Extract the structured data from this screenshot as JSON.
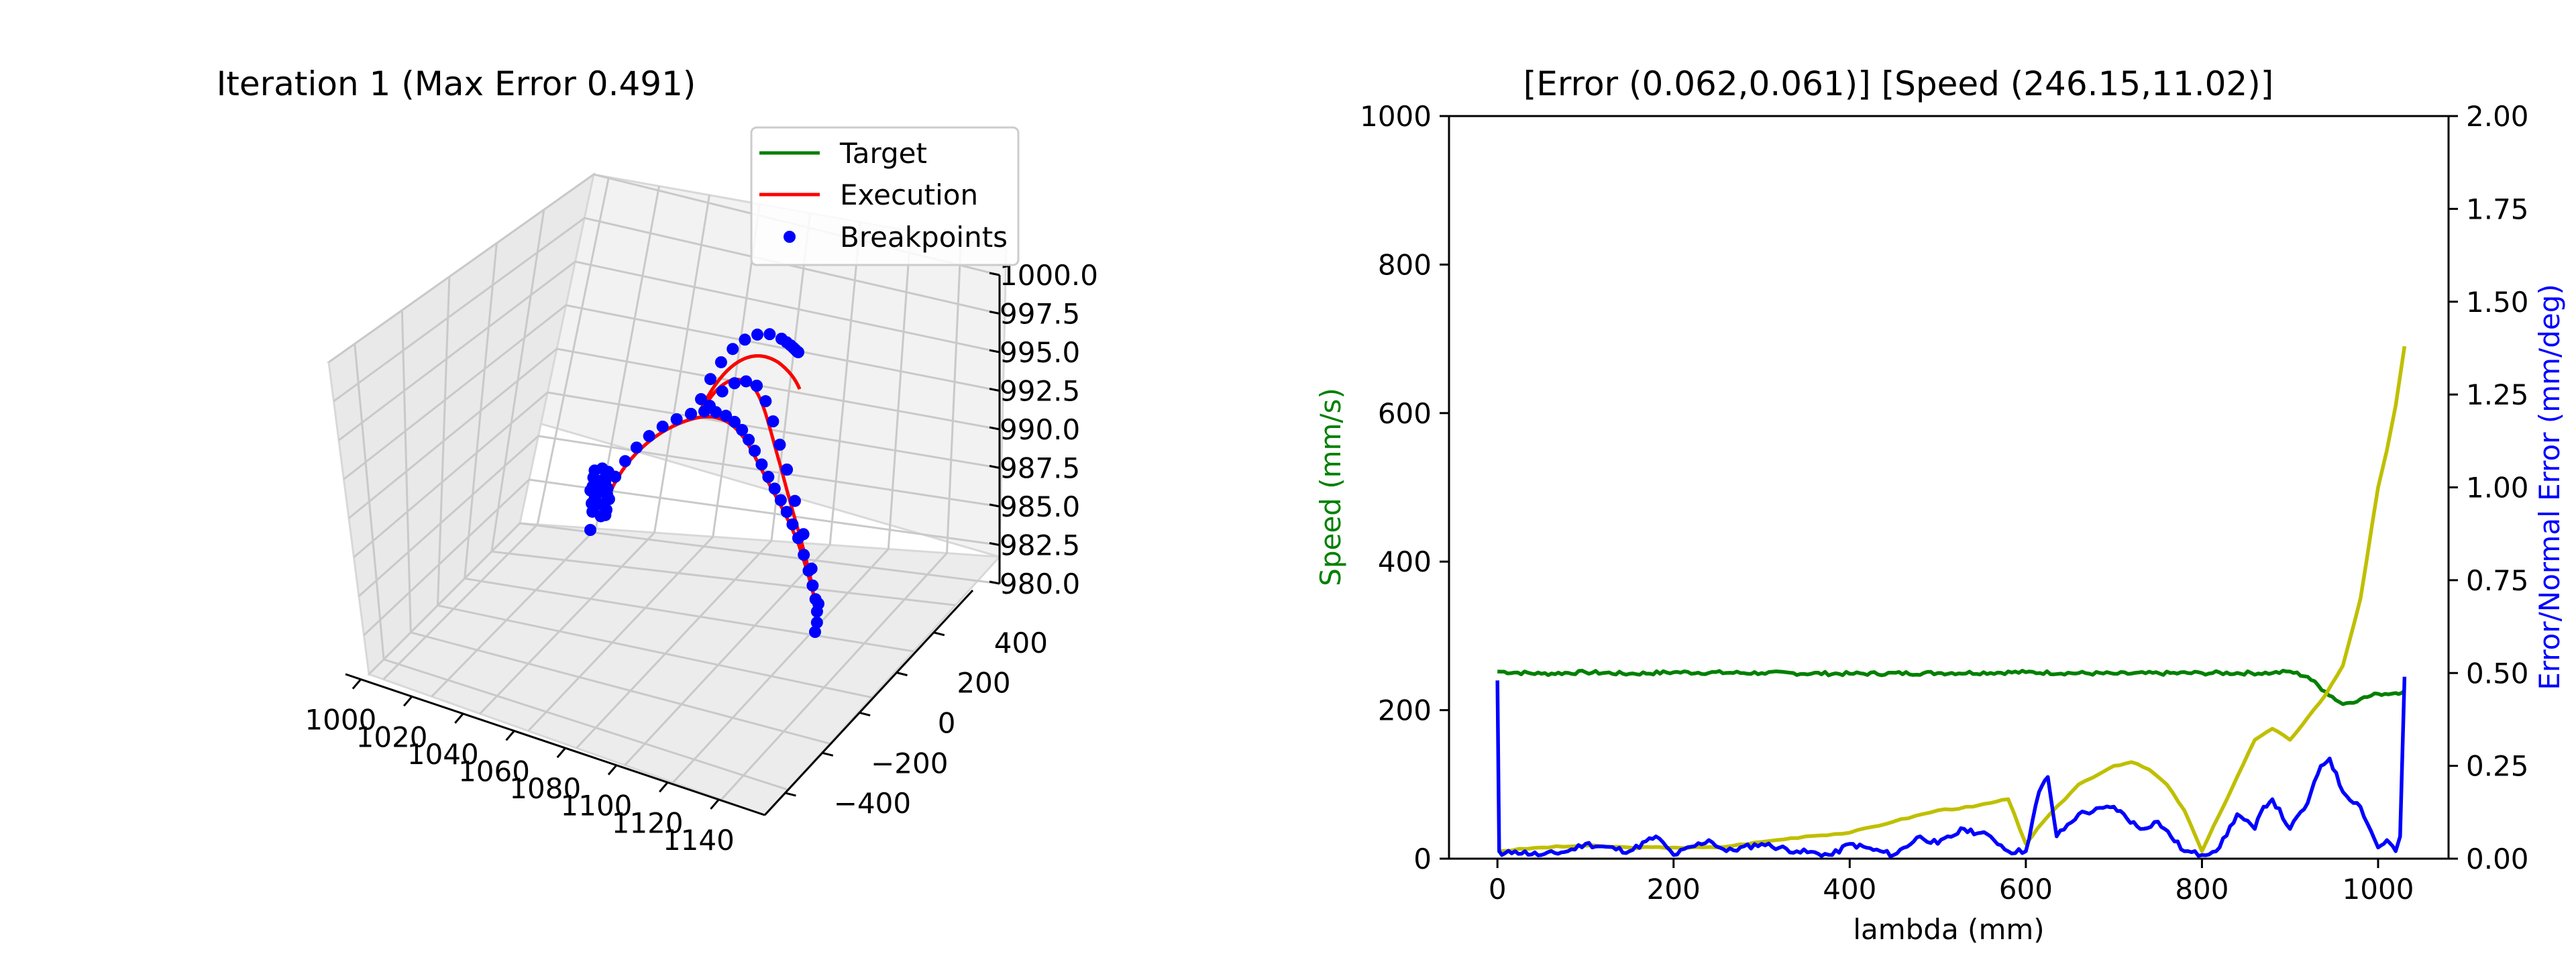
{
  "chart_data": [
    {
      "type": "scatter",
      "subtype": "3d-line-scatter",
      "title": "Iteration 1 (Max Error 0.491)",
      "xlabel": "",
      "ylabel": "",
      "zlabel": "",
      "x_ticks": [
        "1000",
        "1020",
        "1040",
        "1060",
        "1080",
        "1100",
        "1120",
        "1140"
      ],
      "y_ticks": [
        "−400",
        "−200",
        "0",
        "200",
        "400"
      ],
      "z_ticks": [
        "980.0",
        "982.5",
        "985.0",
        "987.5",
        "990.0",
        "992.5",
        "995.0",
        "997.5",
        "1000.0"
      ],
      "xlim": [
        1000,
        1150
      ],
      "ylim": [
        -500,
        500
      ],
      "zlim": [
        980,
        1000
      ],
      "legend_position": "upper right",
      "series": [
        {
          "name": "Target",
          "color": "#008000",
          "style": "line"
        },
        {
          "name": "Execution",
          "color": "#ff0000",
          "style": "line"
        },
        {
          "name": "Breakpoints",
          "color": "#0000ff",
          "style": "markers"
        }
      ]
    },
    {
      "type": "line",
      "title": "[Error (0.062,0.061)] [Speed (246.15,11.02)]",
      "xlabel": "lambda (mm)",
      "ylabel": "Speed (mm/s)",
      "ylabel_right": "Error/Normal Error (mm/deg)",
      "x_ticks": [
        "0",
        "200",
        "400",
        "600",
        "800",
        "1000"
      ],
      "y_ticks": [
        "0",
        "200",
        "400",
        "600",
        "800",
        "1000"
      ],
      "y_right_ticks": [
        "0.00",
        "0.25",
        "0.50",
        "0.75",
        "1.00",
        "1.25",
        "1.50",
        "1.75",
        "2.00"
      ],
      "xlim": [
        -55,
        1080
      ],
      "ylim": [
        0,
        1000
      ],
      "ylim_right": [
        0,
        2
      ],
      "grid": false,
      "series": [
        {
          "name": "speed",
          "axis": "left",
          "color": "#008000",
          "x": [
            0,
            50,
            100,
            150,
            200,
            300,
            400,
            500,
            600,
            700,
            800,
            880,
            900,
            920,
            940,
            960,
            980,
            1000,
            1020,
            1030
          ],
          "y": [
            252,
            249,
            251,
            249,
            251,
            250,
            249,
            250,
            251,
            249,
            250,
            250,
            252,
            245,
            225,
            208,
            215,
            222,
            223,
            226
          ]
        },
        {
          "name": "error",
          "axis": "right",
          "color": "#bfbf00",
          "x": [
            0,
            50,
            100,
            150,
            200,
            250,
            300,
            350,
            400,
            450,
            500,
            540,
            560,
            580,
            600,
            620,
            660,
            700,
            720,
            740,
            760,
            780,
            800,
            820,
            840,
            860,
            880,
            900,
            920,
            940,
            960,
            980,
            1000,
            1010,
            1020,
            1030
          ],
          "y": [
            0.02,
            0.03,
            0.035,
            0.03,
            0.03,
            0.03,
            0.045,
            0.06,
            0.07,
            0.1,
            0.13,
            0.14,
            0.15,
            0.16,
            0.04,
            0.1,
            0.2,
            0.25,
            0.26,
            0.24,
            0.2,
            0.13,
            0.02,
            0.12,
            0.22,
            0.32,
            0.35,
            0.32,
            0.38,
            0.44,
            0.52,
            0.7,
            1.0,
            1.1,
            1.22,
            1.38
          ]
        },
        {
          "name": "normal error",
          "axis": "right",
          "color": "#0000ff",
          "x": [
            0,
            2,
            5,
            20,
            50,
            80,
            100,
            150,
            180,
            200,
            240,
            260,
            300,
            340,
            380,
            400,
            450,
            480,
            500,
            530,
            560,
            580,
            600,
            615,
            625,
            635,
            660,
            700,
            730,
            750,
            780,
            800,
            820,
            840,
            860,
            870,
            880,
            900,
            920,
            935,
            945,
            960,
            980,
            1000,
            1010,
            1020,
            1025,
            1030
          ],
          "y": [
            0.48,
            0.02,
            0.01,
            0.02,
            0.01,
            0.02,
            0.04,
            0.02,
            0.06,
            0.01,
            0.05,
            0.02,
            0.04,
            0.02,
            0.01,
            0.04,
            0.01,
            0.06,
            0.04,
            0.08,
            0.06,
            0.02,
            0.02,
            0.18,
            0.22,
            0.06,
            0.12,
            0.14,
            0.08,
            0.1,
            0.02,
            0.01,
            0.03,
            0.12,
            0.08,
            0.14,
            0.16,
            0.08,
            0.15,
            0.25,
            0.27,
            0.18,
            0.14,
            0.03,
            0.05,
            0.02,
            0.06,
            0.49
          ]
        }
      ]
    }
  ]
}
